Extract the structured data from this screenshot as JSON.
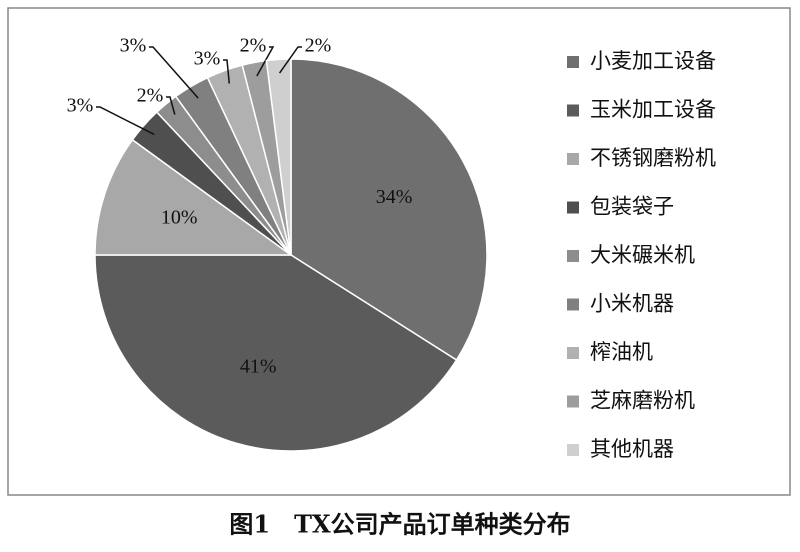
{
  "chart_data": {
    "type": "pie",
    "title": "图1　TX公司产品订单种类分布",
    "categories": [
      "小麦加工设备",
      "玉米加工设备",
      "不锈钢磨粉机",
      "包装袋子",
      "大米碾米机",
      "小米机器",
      "榨油机",
      "芝麻磨粉机",
      "其他机器"
    ],
    "values": [
      34,
      41,
      10,
      3,
      2,
      3,
      3,
      2,
      2
    ],
    "value_labels": [
      "34%",
      "41%",
      "10%",
      "3%",
      "2%",
      "3%",
      "3%",
      "2%",
      "2%"
    ],
    "colors": [
      "#6f6f6f",
      "#5b5b5b",
      "#a8a8a8",
      "#4f4f4f",
      "#8d8d8d",
      "#808080",
      "#b1b1b1",
      "#9d9d9d",
      "#cfcfcf"
    ],
    "legend": "right"
  }
}
